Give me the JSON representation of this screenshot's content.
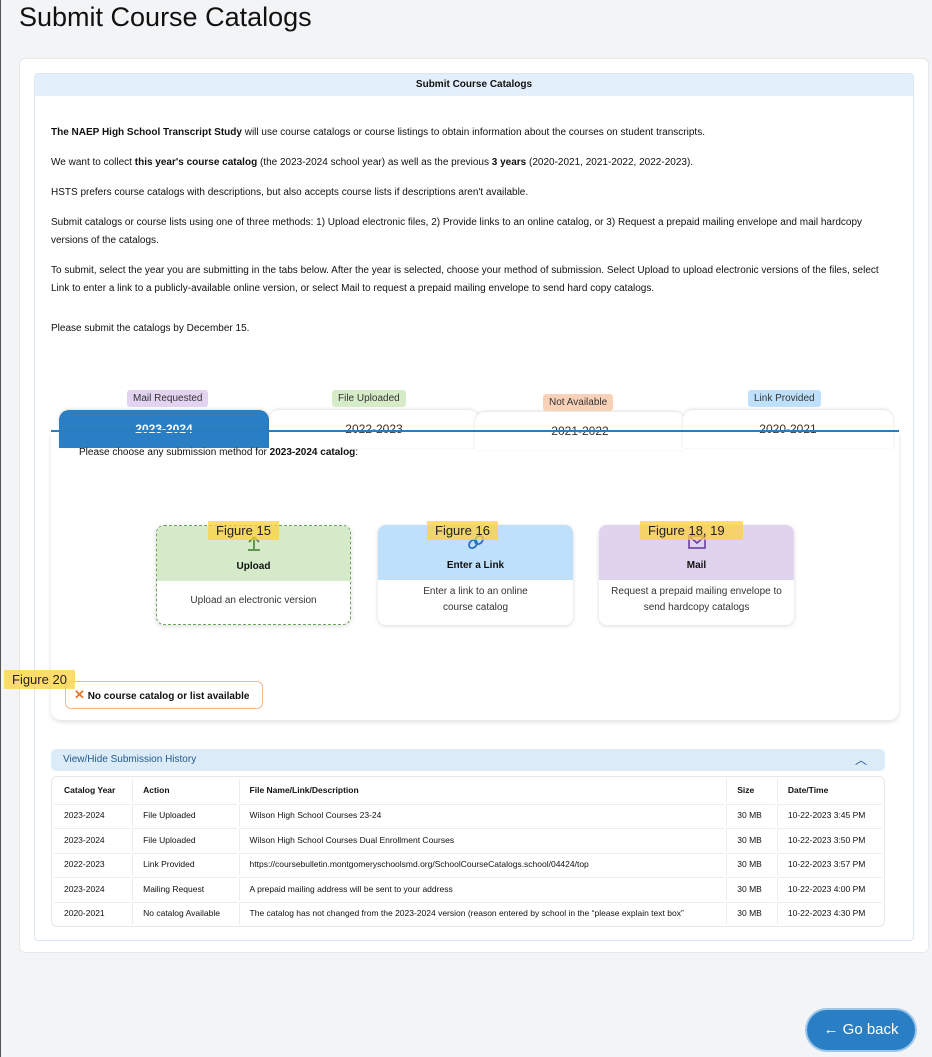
{
  "page_title": "Submit Course Catalogs",
  "section_header": "Submit Course Catalogs",
  "intro": {
    "p1_bold": "The NAEP High School Transcript Study",
    "p1_rest": " will use course catalogs or course listings to obtain information about the courses on student transcripts.",
    "p2_a": "We want to collect ",
    "p2_b": "this year's course catalog",
    "p2_c": " (the 2023-2024 school year) as well as the previous ",
    "p2_d": "3 years",
    "p2_e": " (2020-2021, 2021-2022, 2022-2023).",
    "p3": "HSTS prefers course catalogs with descriptions, but also accepts course lists if descriptions aren't available.",
    "p4": "Submit catalogs or course lists using one of three methods: 1) Upload electronic files, 2) Provide links to an online catalog, or 3) Request a prepaid mailing envelope and mail hardcopy versions of the catalogs.",
    "p5": "To submit, select the year you are submitting in the tabs below. After the year is selected, choose your method of submission.  Select Upload to upload electronic versions of the files, select Link to enter a link to a publicly-available online version, or select Mail to request a prepaid mailing envelope to send hard copy catalogs.",
    "p6": "Please submit the catalogs by December 15."
  },
  "tabs": [
    {
      "label": "2023-2024",
      "badge": "Mail Requested",
      "badge_color": "#e2d3f0",
      "active": true
    },
    {
      "label": "2022-2023",
      "badge": "File Uploaded",
      "badge_color": "#d6ecc9"
    },
    {
      "label": "2021-2022",
      "badge": "Not Available",
      "badge_color": "#f8d2b8"
    },
    {
      "label": "2020-2021",
      "badge": "Link Provided",
      "badge_color": "#bfe0fa"
    }
  ],
  "choose": {
    "a": "Please choose any submission method for ",
    "b": "2023-2024 catalog",
    ":": ":",
    "c": ":"
  },
  "methods": [
    {
      "title": "Upload",
      "desc": "Upload an electronic version",
      "color": "#d5eac8",
      "icon": "upload-icon"
    },
    {
      "title": "Enter a Link",
      "desc": "Enter a link to an online course catalog",
      "color": "#bee0fb",
      "icon": "link-icon"
    },
    {
      "title": "Mail",
      "desc": "Request a prepaid mailing envelope to send hardcopy catalogs",
      "color": "#e0d3ee",
      "icon": "mail-icon"
    }
  ],
  "figures": [
    "Figure 15",
    "Figure 16",
    "Figure 18, 19",
    "Figure 20"
  ],
  "no_catalog": "No course catalog or list available",
  "history_toggle": "View/Hide Submission History",
  "history": {
    "columns": [
      "Catalog Year",
      "Action",
      "File Name/Link/Description",
      "Size",
      "Date/Time"
    ],
    "rows": [
      [
        "2023-2024",
        "File Uploaded",
        "Wilson High School Courses 23-24",
        "30 MB",
        "10-22-2023 3:45 PM"
      ],
      [
        "2023-2024",
        "File Uploaded",
        "Wilson High School Courses Dual Enrollment Courses",
        "30 MB",
        "10-22-2023 3:50 PM"
      ],
      [
        "2022-2023",
        "Link Provided",
        "https://coursebulletin.montgomeryschoolsmd.org/SchoolCourseCatalogs.school/04424/top",
        "30 MB",
        "10-22-2023 3:57 PM"
      ],
      [
        "2023-2024",
        "Mailing Request",
        "A prepaid mailing address will be sent to your address",
        "30 MB",
        "10-22-2023 4:00 PM"
      ],
      [
        "2020-2021",
        "No catalog Available",
        "The catalog has not changed from the 2023-2024 version (reason entered by school in the “please explain text box”",
        "30 MB",
        "10-22-2023 4:30 PM"
      ]
    ]
  },
  "go_back": "← Go back"
}
